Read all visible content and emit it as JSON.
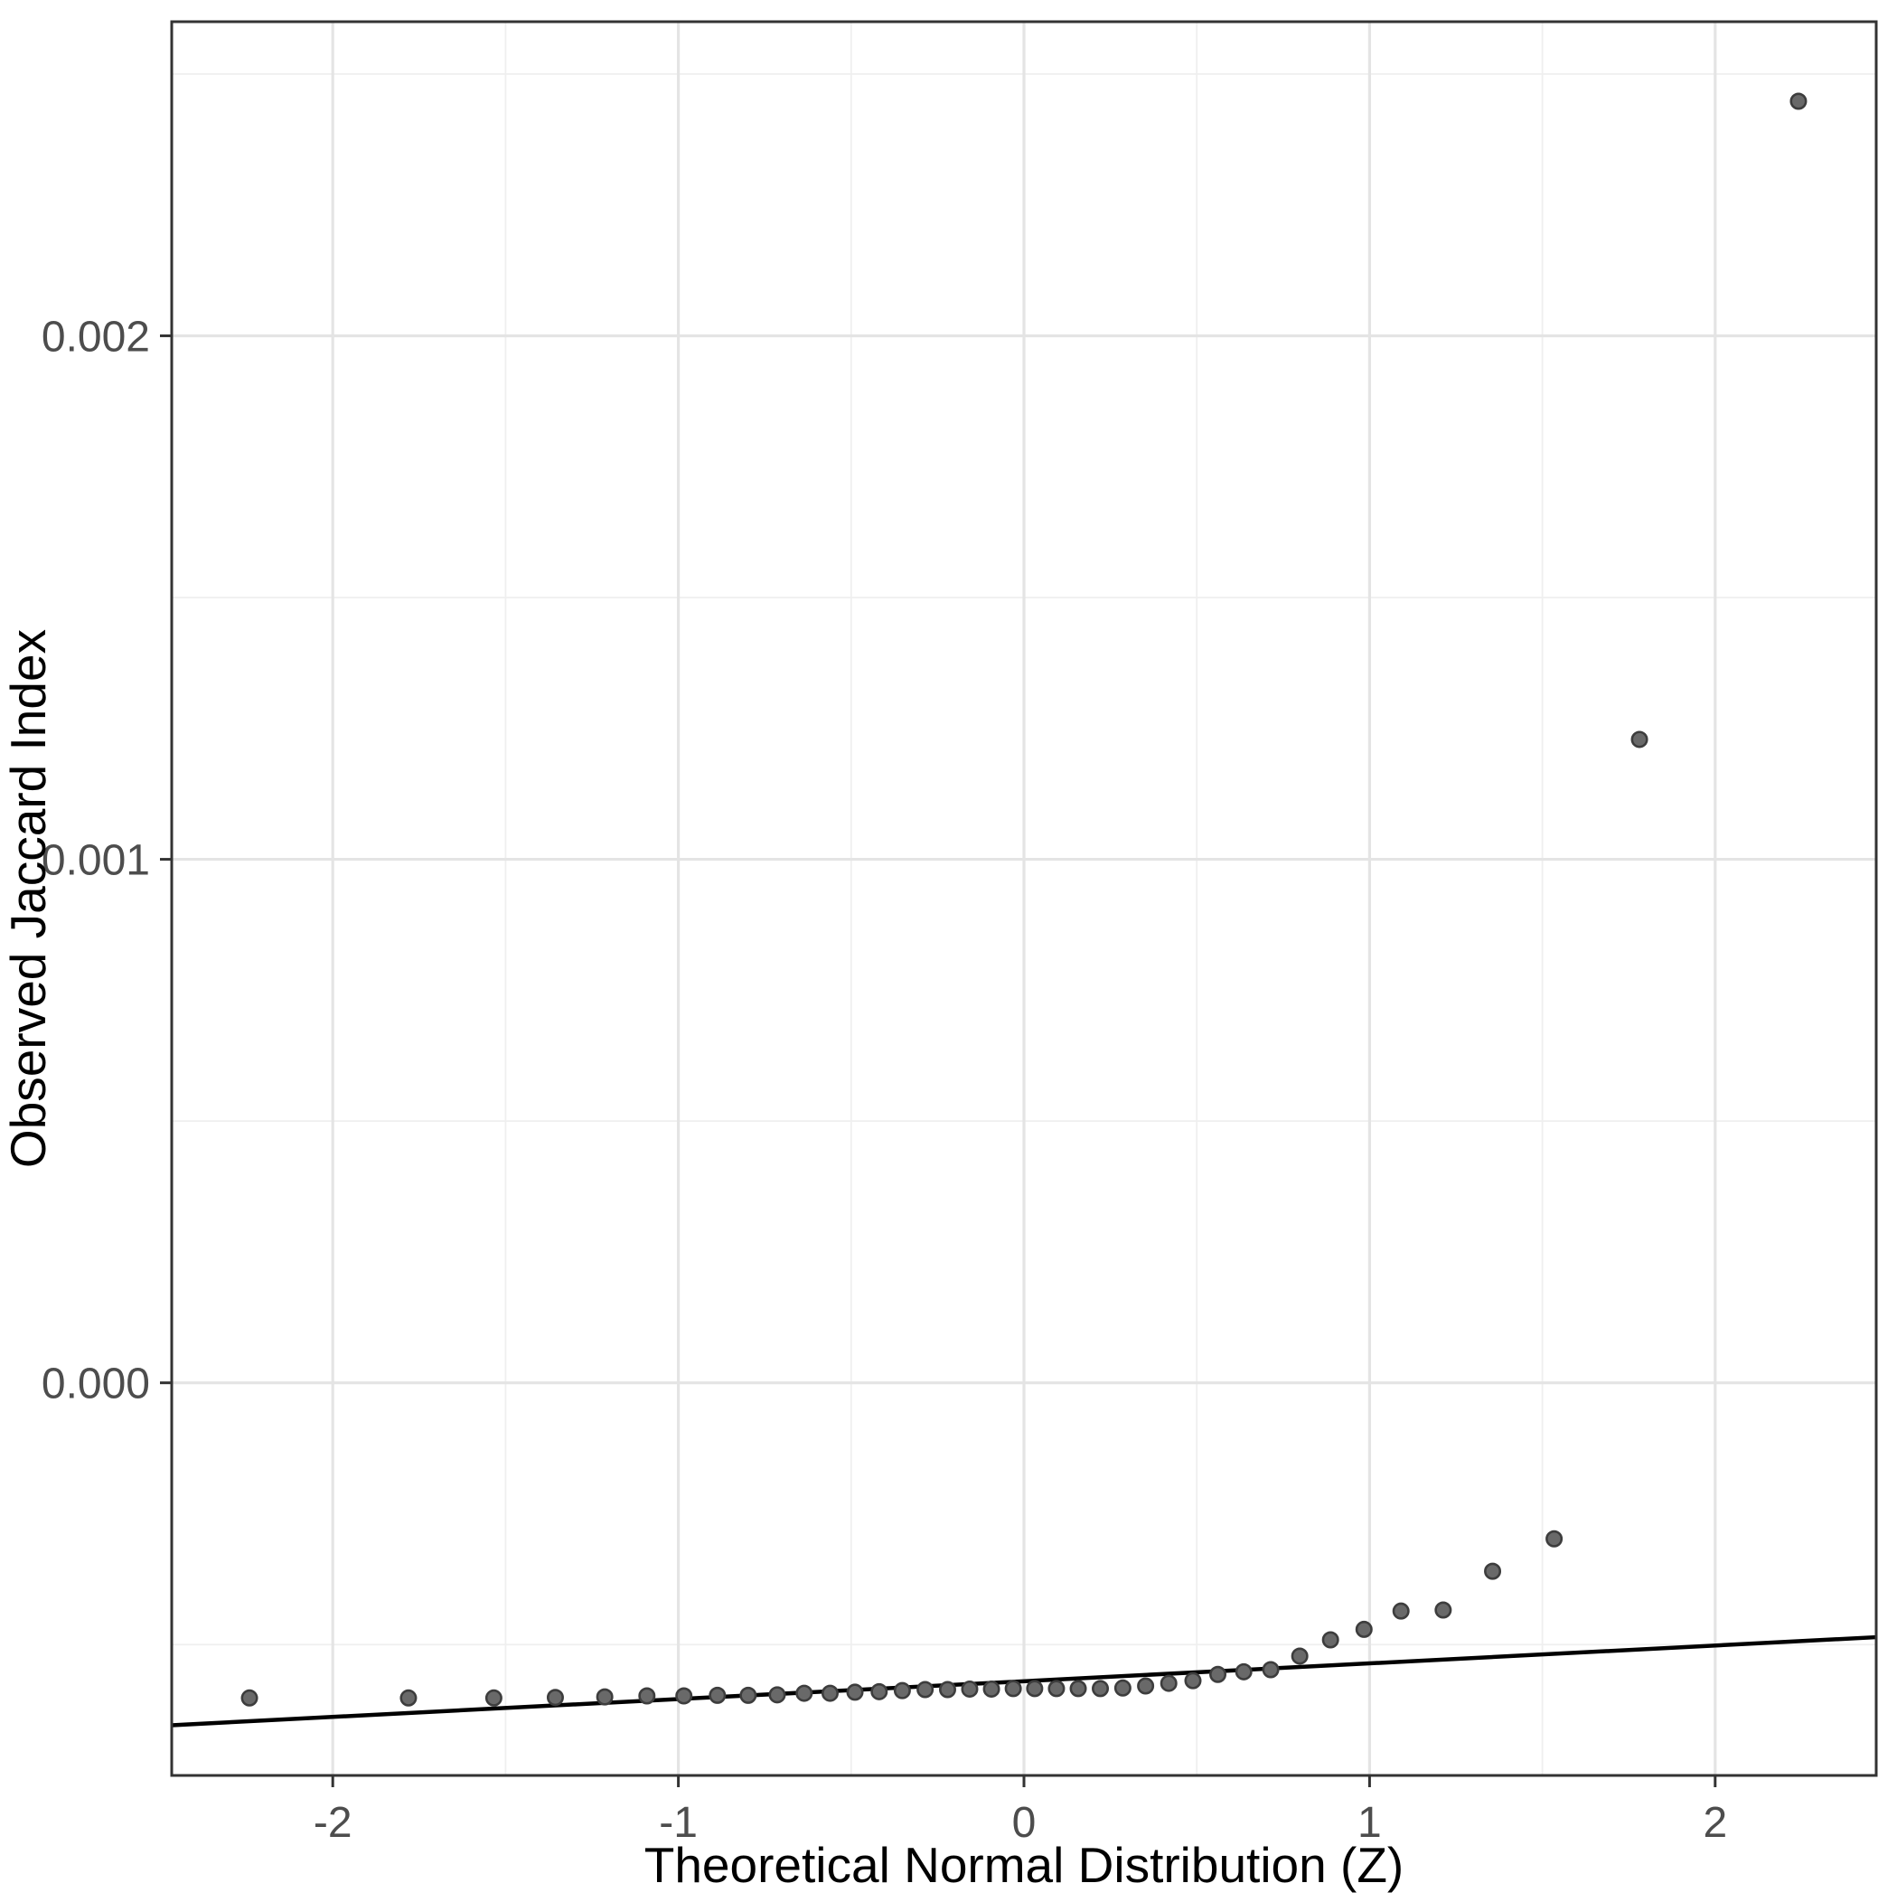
{
  "chart_data": {
    "type": "scatter",
    "subtype": "qq-plot",
    "title": "",
    "xlabel": "Theoretical Normal Distribution (Z)",
    "ylabel": "Observed Jaccard Index",
    "xlim": [
      -2.466,
      2.466
    ],
    "ylim": [
      -0.00075,
      0.0026
    ],
    "grid": true,
    "legend": "none",
    "x_ticks": [
      {
        "value": -2,
        "label": "-2"
      },
      {
        "value": -1,
        "label": "-1"
      },
      {
        "value": 0,
        "label": "0"
      },
      {
        "value": 1,
        "label": "1"
      },
      {
        "value": 2,
        "label": "2"
      }
    ],
    "y_ticks": [
      {
        "value": 0.002,
        "label": "0.002"
      },
      {
        "value": 0.001,
        "label": "0.001"
      },
      {
        "value": 0.0,
        "label": "0.000"
      }
    ],
    "x_minor": [
      -1.5,
      -0.5,
      0.5,
      1.5
    ],
    "y_minor": [
      0.0025,
      0.0015,
      0.0005,
      -0.0005
    ],
    "qq_line": {
      "slope": 3.41e-05,
      "intercept": -0.00057
    },
    "points": [
      [
        -2.241,
        -0.000602
      ],
      [
        -1.781,
        -0.000602
      ],
      [
        -1.534,
        -0.000602
      ],
      [
        -1.356,
        -0.000601
      ],
      [
        -1.213,
        -0.0006
      ],
      [
        -1.091,
        -0.000598
      ],
      [
        -0.984,
        -0.000598
      ],
      [
        -0.887,
        -0.000597
      ],
      [
        -0.798,
        -0.000597
      ],
      [
        -0.714,
        -0.000596
      ],
      [
        -0.636,
        -0.000593
      ],
      [
        -0.561,
        -0.000593
      ],
      [
        -0.489,
        -0.000591
      ],
      [
        -0.419,
        -0.00059
      ],
      [
        -0.352,
        -0.000588
      ],
      [
        -0.286,
        -0.000586
      ],
      [
        -0.221,
        -0.000586
      ],
      [
        -0.157,
        -0.000585
      ],
      [
        -0.094,
        -0.000585
      ],
      [
        -0.031,
        -0.000584
      ],
      [
        0.031,
        -0.000584
      ],
      [
        0.094,
        -0.000584
      ],
      [
        0.157,
        -0.000584
      ],
      [
        0.221,
        -0.000584
      ],
      [
        0.286,
        -0.000583
      ],
      [
        0.352,
        -0.000579
      ],
      [
        0.419,
        -0.000574
      ],
      [
        0.489,
        -0.000569
      ],
      [
        0.561,
        -0.000557
      ],
      [
        0.636,
        -0.000552
      ],
      [
        0.714,
        -0.000548
      ],
      [
        0.798,
        -0.000522
      ],
      [
        0.887,
        -0.000491
      ],
      [
        0.984,
        -0.000471
      ],
      [
        1.091,
        -0.000436
      ],
      [
        1.213,
        -0.000434
      ],
      [
        1.356,
        -0.00036
      ],
      [
        1.534,
        -0.000298
      ],
      [
        1.781,
        0.001229
      ],
      [
        2.241,
        0.002448
      ]
    ],
    "colors": {
      "background": "#ffffff",
      "panel_background": "#ffffff",
      "grid_major": "#e4e4e4",
      "grid_minor": "#efefef",
      "panel_border": "#333333",
      "tick_mark": "#333333",
      "tick_label": "#4d4d4d",
      "axis_title": "#000000",
      "point_fill": "#696969",
      "point_stroke": "#3d3d3d",
      "qq_line": "#000000"
    }
  }
}
